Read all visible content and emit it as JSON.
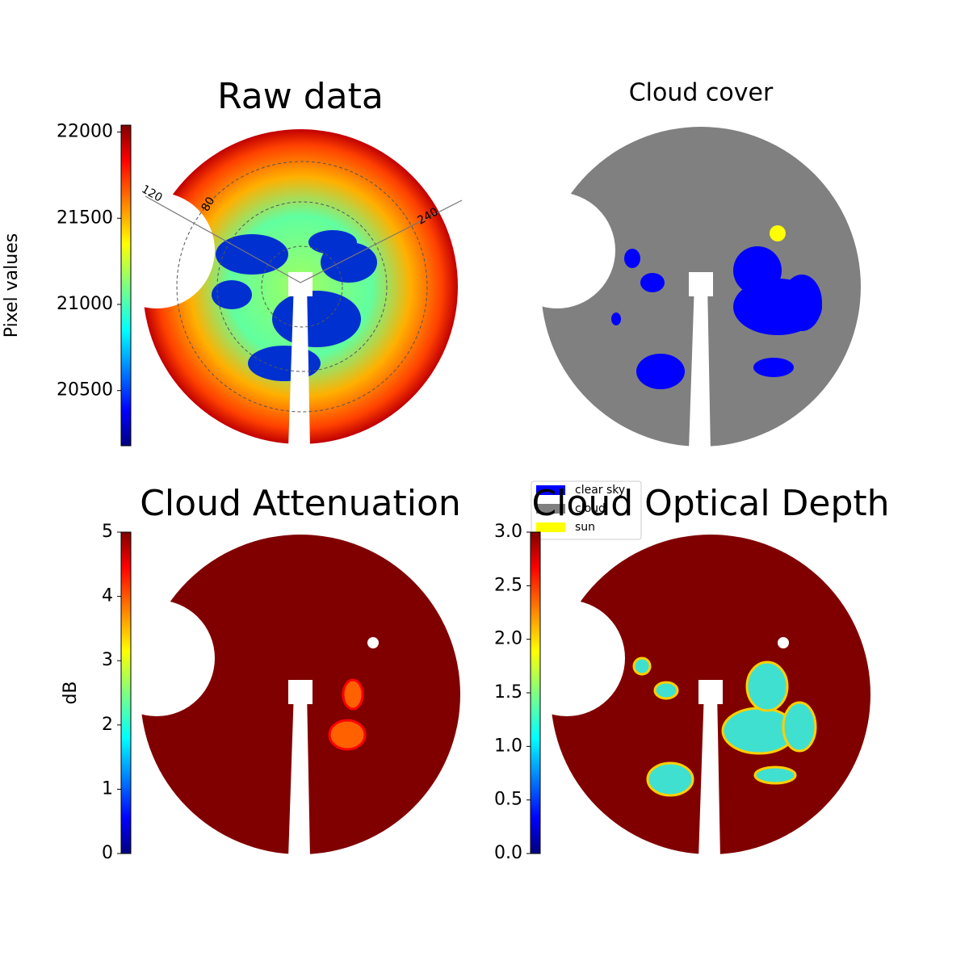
{
  "chart_data": [
    {
      "type": "image",
      "title": "Raw data",
      "colormap": "jet",
      "colorbar": {
        "label": "Pixel values",
        "clim": [
          20180,
          22040
        ],
        "ticks": [
          20500,
          21000,
          21500,
          22000
        ]
      },
      "annotations": [
        "120",
        "240",
        "80"
      ]
    },
    {
      "type": "image",
      "title": "Cloud cover",
      "series": [
        {
          "name": "clear sky",
          "color": "#0000ff"
        },
        {
          "name": "cloud",
          "color": "#808080"
        },
        {
          "name": "sun",
          "color": "#ffff00"
        }
      ]
    },
    {
      "type": "image",
      "title": "Cloud Attenuation",
      "colormap": "jet",
      "colorbar": {
        "label": "dB",
        "clim": [
          0,
          5
        ],
        "ticks": [
          0,
          1,
          2,
          3,
          4,
          5
        ]
      }
    },
    {
      "type": "image",
      "title": "Cloud Optical Depth",
      "colormap": "jet",
      "colorbar": {
        "clim": [
          0,
          3
        ],
        "ticks": [
          {
            "value": 0,
            "label": "0.0"
          },
          {
            "value": 0.5,
            "label": "0.5"
          },
          {
            "value": 1,
            "label": "1.0"
          },
          {
            "value": 1.5,
            "label": "1.5"
          },
          {
            "value": 2,
            "label": "2.0"
          },
          {
            "value": 2.5,
            "label": "2.5"
          },
          {
            "value": 3,
            "label": "3.0"
          }
        ]
      }
    }
  ]
}
